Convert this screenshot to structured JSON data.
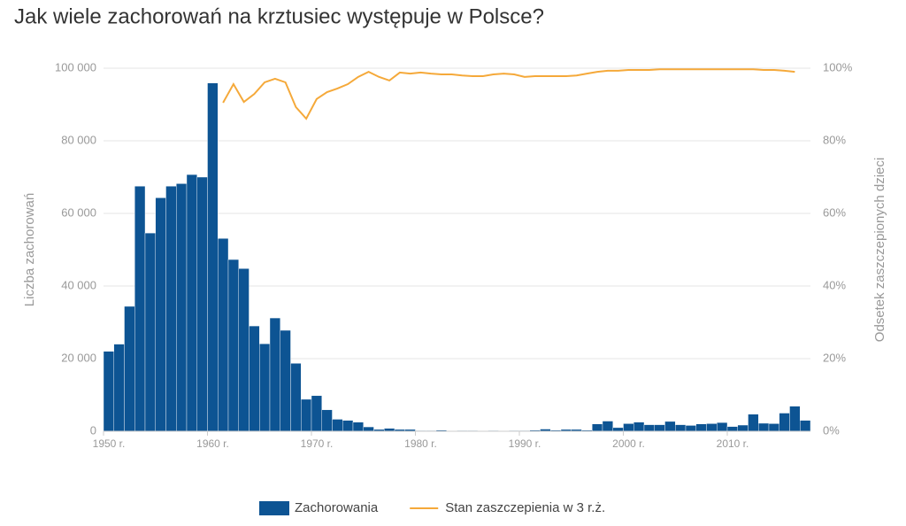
{
  "chart_data": {
    "type": "bar_line",
    "title": "Jak wiele zachorowań na krztusiec występuje w Polsce?",
    "y_label": "Liczba zachorowań",
    "y2_label": "Odsetek zaszczepionych dzieci",
    "x": [
      1950,
      1951,
      1952,
      1953,
      1954,
      1955,
      1956,
      1957,
      1958,
      1959,
      1960,
      1961,
      1962,
      1963,
      1964,
      1965,
      1966,
      1967,
      1968,
      1969,
      1970,
      1971,
      1972,
      1973,
      1974,
      1975,
      1976,
      1977,
      1978,
      1979,
      1980,
      1981,
      1982,
      1983,
      1984,
      1985,
      1986,
      1987,
      1988,
      1989,
      1990,
      1991,
      1992,
      1993,
      1994,
      1995,
      1996,
      1997,
      1998,
      1999,
      2000,
      2001,
      2002,
      2003,
      2004,
      2005,
      2006,
      2007,
      2008,
      2009,
      2010,
      2011,
      2012,
      2013,
      2014,
      2015,
      2016,
      2017
    ],
    "xlim": [
      1950,
      2018
    ],
    "xticks": [
      {
        "value": 1950,
        "label": "1950 r."
      },
      {
        "value": 1960,
        "label": "1960 r."
      },
      {
        "value": 1970,
        "label": "1970 r."
      },
      {
        "value": 1980,
        "label": "1980 r."
      },
      {
        "value": 1990,
        "label": "1990 r."
      },
      {
        "value": 2000,
        "label": "2000 r."
      },
      {
        "value": 2010,
        "label": "2010 r."
      }
    ],
    "ylim": [
      0,
      100000
    ],
    "yticks": [
      0,
      {
        "value": 20000,
        "label": "20 000"
      },
      {
        "value": 40000,
        "label": "40 000"
      },
      {
        "value": 60000,
        "label": "60 000"
      },
      {
        "value": 80000,
        "label": "80 000"
      },
      {
        "value": 100000,
        "label": "100 000"
      }
    ],
    "y2lim": [
      0,
      100
    ],
    "y2ticks": [
      {
        "value": 0,
        "label": "0%"
      },
      {
        "value": 20,
        "label": "20%"
      },
      {
        "value": 40,
        "label": "40%"
      },
      {
        "value": 60,
        "label": "60%"
      },
      {
        "value": 80,
        "label": "80%"
      },
      {
        "value": 100,
        "label": "100%"
      }
    ],
    "grid": true,
    "legend": "bottom",
    "series": [
      {
        "name": "Zachorowania",
        "type": "bar",
        "color": "#0d5493",
        "values": [
          22000,
          24000,
          34400,
          67500,
          54600,
          64300,
          67500,
          68200,
          70700,
          70000,
          95900,
          53100,
          47300,
          44800,
          29000,
          24100,
          31200,
          27800,
          18700,
          8800,
          9800,
          5900,
          3300,
          3000,
          2500,
          1200,
          500,
          800,
          500,
          500,
          200,
          200,
          300,
          100,
          200,
          200,
          100,
          200,
          100,
          200,
          200,
          300,
          600,
          300,
          500,
          500,
          300,
          2000,
          2800,
          1000,
          2100,
          2500,
          1800,
          1800,
          2700,
          1800,
          1600,
          2000,
          2100,
          2400,
          1300,
          1700,
          4700,
          2200,
          2100,
          5000,
          6900,
          3000
        ]
      },
      {
        "name": "Stan zaszczepienia w 3 r.ż.",
        "type": "line",
        "axis": "y2",
        "color": "#f5a93a",
        "values": [
          null,
          null,
          null,
          null,
          null,
          null,
          null,
          null,
          null,
          null,
          null,
          90.5,
          95.6,
          90.7,
          92.9,
          96.1,
          97.1,
          96.1,
          89.3,
          86.1,
          91.5,
          93.4,
          94.4,
          95.6,
          97.6,
          99,
          97.6,
          96.6,
          98.8,
          98.5,
          98.8,
          98.5,
          98.3,
          98.3,
          98,
          97.8,
          97.8,
          98.3,
          98.5,
          98.3,
          97.6,
          97.8,
          97.8,
          97.8,
          97.8,
          98,
          98.5,
          99,
          99.3,
          99.3,
          99.5,
          99.5,
          99.5,
          99.7,
          99.7,
          99.7,
          99.7,
          99.7,
          99.7,
          99.7,
          99.7,
          99.7,
          99.7,
          99.5,
          99.5,
          99.3,
          99,
          null
        ]
      }
    ]
  }
}
